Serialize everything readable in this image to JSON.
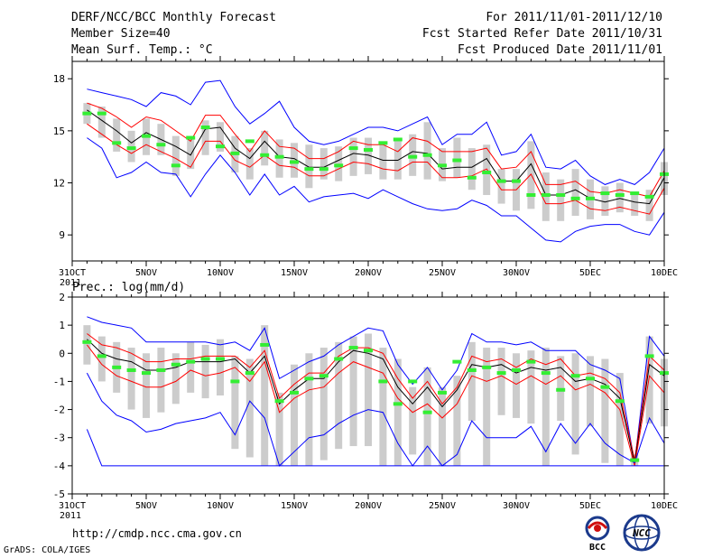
{
  "header": {
    "title": "DERF/NCC/BCC Monthly Forecast",
    "member": "Member Size=40",
    "variable": "Mean Surf. Temp.: °C",
    "period": "For 2011/11/01-2011/12/10",
    "started": "Fcst Started Refer Date 2011/10/31",
    "produced": "Fcst Produced Date 2011/11/01"
  },
  "footer": {
    "url": "http://cmdp.ncc.cma.gov.cn",
    "grads": "GrADS: COLA/IGES",
    "bcc_logo": "BCC",
    "ncc_logo": "NCC"
  },
  "colors": {
    "blue": "#0000ff",
    "red": "#ff0000",
    "black": "#000000",
    "green": "#33ee33",
    "box": "#cccccc"
  },
  "x_labels": [
    "31OCT",
    "5NOV",
    "10NOV",
    "15NOV",
    "20NOV",
    "25NOV",
    "30NOV",
    "5DEC",
    "10DEC"
  ],
  "x_year": "2011",
  "chart_data": [
    {
      "type": "line",
      "title": "Mean Surf. Temp.: °C",
      "xlabel": "",
      "ylabel": "",
      "ylim": [
        7.5,
        19
      ],
      "yticks": [
        9,
        12,
        15,
        18
      ],
      "x_start": "2011-11-01",
      "n_days": 40,
      "series": [
        {
          "name": "max",
          "values": [
            17.4,
            17.2,
            17,
            16.8,
            16.4,
            17.2,
            17,
            16.5,
            17.8,
            17.9,
            16.4,
            15.4,
            16,
            16.7,
            15.2,
            14.4,
            14.2,
            14.4,
            14.8,
            15.2,
            15.2,
            15,
            15.4,
            15.8,
            14.2,
            14.8,
            14.8,
            15.5,
            13.6,
            13.8,
            14.8,
            12.9,
            12.8,
            13.3,
            12.4,
            11.9,
            12.2,
            11.9,
            12.6,
            14
          ]
        },
        {
          "name": "upper",
          "values": [
            16.6,
            16.3,
            15.8,
            15.2,
            15.8,
            15.6,
            15,
            14.4,
            15.9,
            15.9,
            14.8,
            13.8,
            15,
            14.1,
            14,
            13.4,
            13.4,
            13.8,
            14.4,
            14.2,
            14.2,
            13.8,
            14.6,
            14.4,
            13.8,
            13.8,
            13.8,
            14,
            12.8,
            12.9,
            13.8,
            11.9,
            11.9,
            12.1,
            11.5,
            11.4,
            11.6,
            11.4,
            11.2,
            12.7
          ]
        },
        {
          "name": "mean",
          "values": [
            16.2,
            15.6,
            15,
            14.3,
            14.9,
            14.5,
            14.1,
            13.6,
            15.1,
            15.2,
            14,
            13.4,
            14.4,
            13.5,
            13.4,
            12.9,
            12.9,
            13.3,
            13.7,
            13.6,
            13.3,
            13.3,
            13.8,
            13.7,
            12.8,
            12.9,
            12.9,
            13.4,
            12.1,
            12.1,
            13.1,
            11.3,
            11.3,
            11.6,
            11.1,
            10.9,
            11.1,
            10.9,
            10.8,
            12.3
          ]
        },
        {
          "name": "lower",
          "values": [
            15.4,
            14.8,
            14.2,
            13.7,
            14.2,
            13.8,
            13.4,
            12.9,
            14.4,
            14.4,
            13.3,
            12.9,
            13.6,
            13,
            12.9,
            12.4,
            12.4,
            12.8,
            13.2,
            13.1,
            12.8,
            12.7,
            13.2,
            13.2,
            12.3,
            12.3,
            12.4,
            12.8,
            11.6,
            11.6,
            12.5,
            10.8,
            10.8,
            11,
            10.5,
            10.4,
            10.6,
            10.4,
            10.2,
            11.7
          ]
        },
        {
          "name": "min",
          "values": [
            14.6,
            14,
            12.3,
            12.6,
            13.2,
            12.6,
            12.5,
            11.2,
            12.5,
            13.6,
            12.6,
            11.3,
            12.5,
            11.3,
            11.8,
            10.9,
            11.2,
            11.3,
            11.4,
            11.1,
            11.6,
            11.2,
            10.8,
            10.5,
            10.4,
            10.5,
            11,
            10.7,
            10.1,
            10.1,
            9.4,
            8.7,
            8.6,
            9.2,
            9.5,
            9.6,
            9.6,
            9.2,
            9,
            10.3
          ]
        },
        {
          "name": "obs",
          "values": [
            16,
            16,
            14.3,
            14,
            14.7,
            14.2,
            13,
            14.6,
            15.2,
            14.1,
            13.7,
            14.4,
            13.6,
            13.5,
            13.2,
            12.8,
            12.8,
            13,
            14,
            13.9,
            14.3,
            14.5,
            13.5,
            13.6,
            13,
            13.3,
            12.3,
            12.6,
            12.1,
            12.1,
            11.3,
            11.3,
            11.3,
            11.1,
            11.1,
            11.4,
            11.3,
            11.4,
            11.2,
            12.5
          ]
        }
      ],
      "boxes": {
        "top": [
          16.6,
          16.4,
          15.7,
          15,
          15.7,
          15.4,
          14.7,
          14.6,
          15.6,
          15.5,
          14.7,
          14,
          15,
          14.5,
          14.3,
          14.2,
          14,
          14.1,
          14.6,
          14.6,
          14.2,
          14.4,
          14.8,
          15.5,
          14,
          14.6,
          14,
          14.2,
          12.8,
          12.8,
          14.4,
          12.6,
          12.2,
          12.8,
          12.2,
          11.8,
          12,
          11.4,
          11.6,
          13.2
        ],
        "bottom": [
          15.4,
          14.6,
          13.8,
          13.2,
          13.6,
          13.6,
          12.4,
          12.8,
          13.6,
          13.8,
          12.6,
          12.2,
          13,
          12.3,
          12.3,
          11.7,
          12.2,
          12.1,
          12.4,
          12.5,
          12.2,
          12.2,
          12.4,
          12.2,
          12.1,
          12.3,
          11.6,
          11.3,
          10.8,
          10.4,
          10.5,
          9.8,
          9.8,
          10.1,
          9.9,
          10.1,
          10.3,
          10.1,
          9.8,
          11.3
        ]
      }
    },
    {
      "type": "line",
      "title": "Prec.: log(mm/d)",
      "xlabel": "",
      "ylabel": "",
      "ylim": [
        -5,
        2
      ],
      "yticks": [
        -5,
        -4,
        -3,
        -2,
        -1,
        0,
        1,
        2
      ],
      "x_start": "2011-11-01",
      "n_days": 40,
      "series": [
        {
          "name": "max",
          "values": [
            1.3,
            1.1,
            1,
            0.9,
            0.4,
            0.4,
            0.4,
            0.4,
            0.4,
            0.3,
            0.4,
            0.1,
            0.9,
            -0.9,
            -0.6,
            -0.3,
            -0.1,
            0.3,
            0.6,
            0.9,
            0.8,
            -0.4,
            -1.1,
            -0.5,
            -1.3,
            -0.6,
            0.7,
            0.4,
            0.4,
            0.3,
            0.4,
            0.1,
            0.1,
            0.1,
            -0.4,
            -0.6,
            -0.9,
            -3.9,
            0.6,
            -0.1
          ]
        },
        {
          "name": "upper",
          "values": [
            0.7,
            0.3,
            0.2,
            0,
            -0.3,
            -0.3,
            -0.2,
            -0.2,
            -0.1,
            -0.1,
            -0.1,
            -0.5,
            0.1,
            -1.6,
            -1.1,
            -0.7,
            -0.7,
            -0.1,
            0.2,
            0.2,
            0,
            -0.9,
            -1.6,
            -1,
            -1.8,
            -1.2,
            -0.1,
            -0.3,
            -0.2,
            -0.5,
            -0.2,
            -0.4,
            -0.2,
            -0.8,
            -0.7,
            -0.9,
            -1.4,
            -3.8,
            -0.1,
            -0.6
          ]
        },
        {
          "name": "mean",
          "values": [
            0.5,
            0,
            -0.2,
            -0.3,
            -0.6,
            -0.6,
            -0.5,
            -0.3,
            -0.3,
            -0.3,
            -0.2,
            -0.7,
            -0.1,
            -1.8,
            -1.3,
            -0.9,
            -0.9,
            -0.3,
            0.1,
            0,
            -0.2,
            -1.2,
            -1.8,
            -1.2,
            -1.9,
            -1.3,
            -0.4,
            -0.5,
            -0.4,
            -0.7,
            -0.5,
            -0.6,
            -0.5,
            -1,
            -0.9,
            -1.1,
            -1.6,
            -3.9,
            -0.4,
            -0.8
          ]
        },
        {
          "name": "lower",
          "values": [
            0.3,
            -0.4,
            -0.8,
            -1,
            -1.2,
            -1.2,
            -1,
            -0.6,
            -0.8,
            -0.7,
            -0.5,
            -1,
            -0.3,
            -2.1,
            -1.6,
            -1.3,
            -1.2,
            -0.7,
            -0.3,
            -0.5,
            -0.7,
            -1.6,
            -2.1,
            -1.8,
            -2.3,
            -1.8,
            -0.8,
            -1,
            -0.8,
            -1.1,
            -0.8,
            -1.1,
            -0.8,
            -1.3,
            -1.1,
            -1.4,
            -2,
            -4,
            -0.8,
            -1.4
          ]
        },
        {
          "name": "min",
          "values": [
            -0.7,
            -1.7,
            -2.2,
            -2.4,
            -2.8,
            -2.7,
            -2.5,
            -2.4,
            -2.3,
            -2.1,
            -2.9,
            -1.7,
            -2.3,
            -4,
            -3.5,
            -3,
            -2.9,
            -2.5,
            -2.2,
            -2,
            -2.1,
            -3.2,
            -4,
            -3.3,
            -4,
            -3.6,
            -2.4,
            -3,
            -3,
            -3,
            -2.6,
            -3.5,
            -2.5,
            -3.2,
            -2.5,
            -3.2,
            -3.6,
            -3.9,
            -2.3,
            -3.2
          ]
        },
        {
          "name": "bottom",
          "values": [
            -2.7,
            -4,
            -4,
            -4,
            -4,
            -4,
            -4,
            -4,
            -4,
            -4,
            -4,
            -4,
            -4,
            -4,
            -4,
            -4,
            -4,
            -4,
            -4,
            -4,
            -4,
            -4,
            -4,
            -4,
            -4,
            -4,
            -4,
            -4,
            -4,
            -4,
            -4,
            -4,
            -4,
            -4,
            -4,
            -4,
            -4,
            -4,
            -4,
            -4
          ]
        },
        {
          "name": "obs",
          "values": [
            0.4,
            -0.1,
            -0.5,
            -0.6,
            -0.7,
            -0.6,
            -0.4,
            -0.3,
            -0.2,
            -0.2,
            -1,
            -0.7,
            0.3,
            -1.7,
            -1.4,
            -0.9,
            -0.8,
            -0.2,
            0.2,
            0.1,
            -1,
            -1.8,
            -1,
            -2.1,
            -1.4,
            -0.3,
            -0.6,
            -0.5,
            -0.7,
            -0.6,
            -0.3,
            -0.7,
            -1.3,
            -0.8,
            -0.9,
            -1.2,
            -1.7,
            -3.8,
            -0.1,
            -0.7
          ]
        }
      ],
      "boxes": {
        "top": [
          1,
          0.6,
          0.4,
          0.2,
          0,
          0.2,
          0,
          0.4,
          0.3,
          0.5,
          -0.1,
          -0.2,
          1,
          -1.4,
          -0.4,
          0,
          0.2,
          0.4,
          0.6,
          0.7,
          0.2,
          -0.2,
          -1.2,
          -0.5,
          -1.2,
          -0.8,
          0.4,
          0.2,
          0.2,
          0,
          0.1,
          0.2,
          -0.1,
          0,
          -0.1,
          -0.2,
          -0.7,
          -3.6,
          0.6,
          -0.2
        ],
        "bottom": [
          -0.4,
          -1,
          -1.4,
          -2,
          -2.3,
          -2.1,
          -1.8,
          -1.4,
          -1.6,
          -1.5,
          -3.4,
          -3.7,
          -4,
          -4,
          -4,
          -4,
          -3.8,
          -3.4,
          -3.3,
          -3.3,
          -4,
          -4,
          -3.6,
          -4,
          -4,
          -4,
          -2.4,
          -4,
          -2.2,
          -2.3,
          -2.5,
          -4,
          -2.4,
          -3.6,
          -2.6,
          -3.9,
          -4,
          -4,
          -2.5,
          -2.6
        ]
      }
    }
  ]
}
